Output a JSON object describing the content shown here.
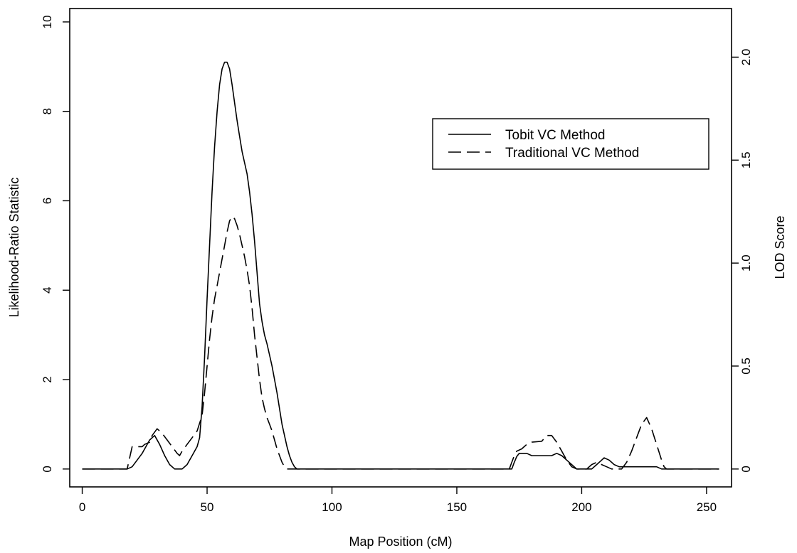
{
  "chart_data": {
    "type": "line",
    "xlabel": "Map Position (cM)",
    "ylabel": "Likelihood-Ratio Statistic",
    "ylabel_right": "LOD Score",
    "xlim": [
      -5,
      260
    ],
    "ylim": [
      -0.4,
      10.3
    ],
    "xticks": [
      0,
      50,
      100,
      150,
      200,
      250
    ],
    "yticks": [
      0,
      2,
      4,
      6,
      8,
      10
    ],
    "yticks_right": [
      0,
      0.5,
      1.0,
      1.5,
      2.0
    ],
    "yticks_right_labels": [
      "0",
      "0.5",
      "1.0",
      "1.5",
      "2.0"
    ],
    "right_axis_scale": 0.2171,
    "grid": false,
    "legend_position": "top-right",
    "series": [
      {
        "name": "Tobit VC Method",
        "style": "solid",
        "color": "#000000",
        "points": [
          [
            0,
            0
          ],
          [
            18,
            0
          ],
          [
            20,
            0.05
          ],
          [
            24,
            0.35
          ],
          [
            27,
            0.65
          ],
          [
            29,
            0.75
          ],
          [
            31,
            0.55
          ],
          [
            33,
            0.3
          ],
          [
            35,
            0.1
          ],
          [
            37,
            0
          ],
          [
            40,
            0
          ],
          [
            42,
            0.1
          ],
          [
            44,
            0.3
          ],
          [
            46,
            0.5
          ],
          [
            47,
            0.7
          ],
          [
            48,
            1.4
          ],
          [
            49,
            2.5
          ],
          [
            50,
            3.8
          ],
          [
            51,
            5.0
          ],
          [
            52,
            6.2
          ],
          [
            53,
            7.2
          ],
          [
            54,
            8.0
          ],
          [
            55,
            8.6
          ],
          [
            56,
            8.95
          ],
          [
            57,
            9.1
          ],
          [
            58,
            9.1
          ],
          [
            59,
            8.95
          ],
          [
            60,
            8.6
          ],
          [
            61,
            8.2
          ],
          [
            62,
            7.8
          ],
          [
            63,
            7.45
          ],
          [
            64,
            7.1
          ],
          [
            65,
            6.85
          ],
          [
            66,
            6.6
          ],
          [
            67,
            6.2
          ],
          [
            68,
            5.7
          ],
          [
            69,
            5.1
          ],
          [
            70,
            4.4
          ],
          [
            71,
            3.7
          ],
          [
            72,
            3.3
          ],
          [
            73,
            3.0
          ],
          [
            74,
            2.8
          ],
          [
            75,
            2.55
          ],
          [
            76,
            2.3
          ],
          [
            77,
            2.0
          ],
          [
            78,
            1.7
          ],
          [
            79,
            1.35
          ],
          [
            80,
            1.0
          ],
          [
            81,
            0.75
          ],
          [
            82,
            0.5
          ],
          [
            83,
            0.3
          ],
          [
            84,
            0.15
          ],
          [
            85,
            0.05
          ],
          [
            86,
            0
          ],
          [
            172,
            0
          ],
          [
            173,
            0.15
          ],
          [
            174,
            0.28
          ],
          [
            175,
            0.35
          ],
          [
            178,
            0.35
          ],
          [
            180,
            0.3
          ],
          [
            188,
            0.3
          ],
          [
            190,
            0.35
          ],
          [
            192,
            0.3
          ],
          [
            194,
            0.2
          ],
          [
            196,
            0.1
          ],
          [
            198,
            0
          ],
          [
            204,
            0
          ],
          [
            206,
            0.1
          ],
          [
            208,
            0.2
          ],
          [
            209,
            0.25
          ],
          [
            211,
            0.2
          ],
          [
            213,
            0.1
          ],
          [
            215,
            0.05
          ],
          [
            230,
            0.05
          ],
          [
            232,
            0
          ],
          [
            255,
            0
          ]
        ]
      },
      {
        "name": "Traditional VC Method",
        "style": "dashed",
        "color": "#000000",
        "points": [
          [
            0,
            0
          ],
          [
            18,
            0
          ],
          [
            19,
            0.25
          ],
          [
            20,
            0.5
          ],
          [
            24,
            0.5
          ],
          [
            25,
            0.55
          ],
          [
            27,
            0.6
          ],
          [
            28,
            0.75
          ],
          [
            30,
            0.9
          ],
          [
            32,
            0.8
          ],
          [
            34,
            0.65
          ],
          [
            36,
            0.5
          ],
          [
            38,
            0.35
          ],
          [
            39,
            0.3
          ],
          [
            40,
            0.4
          ],
          [
            42,
            0.55
          ],
          [
            44,
            0.7
          ],
          [
            46,
            0.85
          ],
          [
            48,
            1.2
          ],
          [
            49,
            1.7
          ],
          [
            50,
            2.3
          ],
          [
            51,
            2.9
          ],
          [
            52,
            3.4
          ],
          [
            53,
            3.8
          ],
          [
            54,
            4.1
          ],
          [
            55,
            4.4
          ],
          [
            56,
            4.7
          ],
          [
            57,
            5.0
          ],
          [
            58,
            5.3
          ],
          [
            59,
            5.55
          ],
          [
            60,
            5.65
          ],
          [
            61,
            5.6
          ],
          [
            62,
            5.45
          ],
          [
            63,
            5.25
          ],
          [
            64,
            5.0
          ],
          [
            65,
            4.75
          ],
          [
            66,
            4.45
          ],
          [
            67,
            4.1
          ],
          [
            68,
            3.6
          ],
          [
            69,
            3.0
          ],
          [
            70,
            2.5
          ],
          [
            71,
            2.0
          ],
          [
            72,
            1.6
          ],
          [
            73,
            1.35
          ],
          [
            74,
            1.15
          ],
          [
            75,
            1.0
          ],
          [
            76,
            0.85
          ],
          [
            77,
            0.65
          ],
          [
            78,
            0.45
          ],
          [
            79,
            0.3
          ],
          [
            80,
            0.15
          ],
          [
            81,
            0.05
          ],
          [
            82,
            0
          ],
          [
            171,
            0
          ],
          [
            172,
            0.15
          ],
          [
            173,
            0.3
          ],
          [
            174,
            0.4
          ],
          [
            176,
            0.45
          ],
          [
            178,
            0.55
          ],
          [
            180,
            0.6
          ],
          [
            184,
            0.62
          ],
          [
            186,
            0.75
          ],
          [
            188,
            0.75
          ],
          [
            190,
            0.6
          ],
          [
            192,
            0.4
          ],
          [
            194,
            0.2
          ],
          [
            196,
            0.05
          ],
          [
            198,
            0
          ],
          [
            202,
            0
          ],
          [
            204,
            0.1
          ],
          [
            206,
            0.15
          ],
          [
            208,
            0.1
          ],
          [
            210,
            0.05
          ],
          [
            212,
            0
          ],
          [
            216,
            0
          ],
          [
            218,
            0.15
          ],
          [
            220,
            0.4
          ],
          [
            222,
            0.7
          ],
          [
            224,
            1.0
          ],
          [
            226,
            1.15
          ],
          [
            228,
            0.9
          ],
          [
            230,
            0.55
          ],
          [
            232,
            0.2
          ],
          [
            233,
            0.05
          ],
          [
            234,
            0
          ],
          [
            255,
            0
          ]
        ]
      }
    ]
  }
}
